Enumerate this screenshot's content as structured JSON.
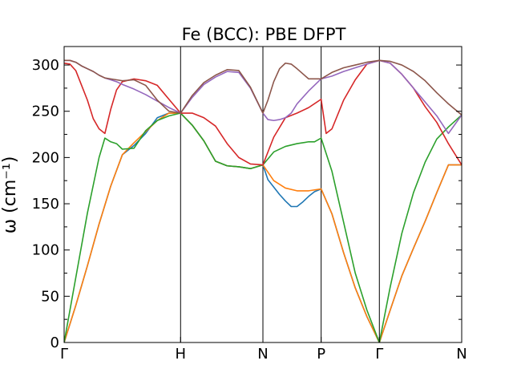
{
  "chart_data": {
    "type": "line",
    "title": "Fe (BCC): PBE DFPT",
    "ylabel": "ω (cm⁻¹)",
    "xlabel": "",
    "ylim": [
      0,
      320
    ],
    "yticks": [
      0,
      50,
      100,
      150,
      200,
      250,
      300
    ],
    "y_minor_ticks": [
      25,
      75,
      125,
      175,
      225,
      275
    ],
    "x_range": [
      0,
      3.414
    ],
    "high_symmetry_points": [
      {
        "label": "Γ",
        "x": 0
      },
      {
        "label": "H",
        "x": 1.0
      },
      {
        "label": "N",
        "x": 1.707
      },
      {
        "label": "P",
        "x": 2.207
      },
      {
        "label": "Γ",
        "x": 2.707
      },
      {
        "label": "N",
        "x": 3.414
      }
    ],
    "grid": false,
    "legend": "none",
    "series": [
      {
        "color": "#1f77b4",
        "x": [
          0,
          0.1,
          0.2,
          0.3,
          0.4,
          0.5,
          0.6,
          0.7,
          0.8,
          0.9,
          1.0,
          1.1,
          1.2,
          1.3,
          1.4,
          1.5,
          1.6,
          1.707,
          1.75,
          1.8,
          1.85,
          1.9,
          1.95,
          2.0,
          2.05,
          2.1,
          2.15,
          2.207,
          2.3,
          2.4,
          2.5,
          2.6,
          2.707,
          2.8,
          2.9,
          3.0,
          3.1,
          3.2,
          3.3,
          3.414
        ],
        "y": [
          0,
          40,
          83,
          128,
          169,
          203,
          213,
          226,
          243,
          248,
          248,
          235,
          218,
          196,
          191,
          190,
          188,
          192,
          176,
          168,
          160,
          153,
          147,
          147,
          152,
          158,
          163,
          166,
          139,
          97,
          59,
          28,
          0,
          35,
          72,
          102,
          131,
          162,
          192,
          192
        ]
      },
      {
        "color": "#ff7f0e",
        "x": [
          0,
          0.1,
          0.2,
          0.3,
          0.4,
          0.5,
          0.6,
          0.7,
          0.8,
          0.9,
          1.0,
          1.1,
          1.2,
          1.3,
          1.4,
          1.5,
          1.6,
          1.707,
          1.8,
          1.9,
          2.0,
          2.1,
          2.207,
          2.3,
          2.4,
          2.5,
          2.6,
          2.707,
          2.8,
          2.9,
          3.0,
          3.1,
          3.2,
          3.3,
          3.414
        ],
        "y": [
          0,
          40,
          83,
          128,
          169,
          203,
          216,
          228,
          240,
          248,
          248,
          235,
          218,
          196,
          191,
          190,
          188,
          192,
          175,
          167,
          164,
          164,
          166,
          139,
          97,
          59,
          28,
          0,
          35,
          72,
          102,
          131,
          162,
          192,
          192
        ]
      },
      {
        "color": "#2ca02c",
        "x": [
          0,
          0.1,
          0.2,
          0.3,
          0.35,
          0.4,
          0.45,
          0.5,
          0.6,
          0.7,
          0.8,
          0.9,
          1.0,
          1.1,
          1.2,
          1.3,
          1.4,
          1.5,
          1.6,
          1.707,
          1.8,
          1.9,
          2.0,
          2.1,
          2.15,
          2.207,
          2.3,
          2.4,
          2.5,
          2.6,
          2.707,
          2.8,
          2.9,
          3.0,
          3.1,
          3.2,
          3.3,
          3.414
        ],
        "y": [
          0,
          70,
          140,
          200,
          221,
          217,
          215,
          209,
          210,
          229,
          240,
          245,
          248,
          235,
          218,
          196,
          191,
          190,
          188,
          192,
          206,
          212,
          215,
          217,
          217,
          221,
          185,
          130,
          75,
          35,
          0,
          60,
          118,
          162,
          195,
          220,
          233,
          246
        ]
      },
      {
        "color": "#d62728",
        "x": [
          0,
          0.05,
          0.1,
          0.15,
          0.2,
          0.25,
          0.3,
          0.35,
          0.4,
          0.45,
          0.5,
          0.6,
          0.7,
          0.8,
          0.9,
          1.0,
          1.1,
          1.2,
          1.3,
          1.4,
          1.5,
          1.6,
          1.707,
          1.8,
          1.9,
          2.0,
          2.1,
          2.207,
          2.25,
          2.3,
          2.4,
          2.5,
          2.6,
          2.707,
          2.8,
          2.9,
          3.0,
          3.1,
          3.2,
          3.3,
          3.414
        ],
        "y": [
          302,
          301,
          294,
          278,
          262,
          242,
          231,
          226,
          252,
          273,
          282,
          285,
          283,
          278,
          263,
          248,
          248,
          243,
          234,
          215,
          200,
          193,
          192,
          222,
          243,
          248,
          254,
          263,
          226,
          231,
          262,
          284,
          301,
          305,
          302,
          290,
          275,
          255,
          238,
          215,
          192
        ]
      },
      {
        "color": "#9467bd",
        "x": [
          0,
          0.05,
          0.1,
          0.15,
          0.2,
          0.25,
          0.3,
          0.35,
          0.4,
          0.45,
          0.5,
          0.6,
          0.7,
          0.8,
          0.9,
          1.0,
          1.1,
          1.2,
          1.3,
          1.4,
          1.5,
          1.6,
          1.707,
          1.75,
          1.8,
          1.85,
          1.9,
          1.95,
          2.0,
          2.1,
          2.207,
          2.3,
          2.4,
          2.5,
          2.6,
          2.707,
          2.8,
          2.9,
          3.0,
          3.1,
          3.2,
          3.3,
          3.414
        ],
        "y": [
          305,
          305,
          303,
          299,
          296,
          293,
          289,
          286,
          284,
          282,
          279,
          274,
          268,
          261,
          254,
          248,
          265,
          279,
          287,
          293,
          292,
          275,
          248,
          241,
          240,
          241,
          243,
          248,
          258,
          272,
          285,
          288,
          293,
          297,
          301,
          305,
          302,
          290,
          275,
          260,
          245,
          226,
          246
        ]
      },
      {
        "color": "#8c564b",
        "x": [
          0,
          0.05,
          0.1,
          0.15,
          0.2,
          0.25,
          0.3,
          0.35,
          0.4,
          0.45,
          0.5,
          0.6,
          0.7,
          0.8,
          0.9,
          1.0,
          1.1,
          1.2,
          1.3,
          1.4,
          1.5,
          1.6,
          1.707,
          1.75,
          1.8,
          1.85,
          1.9,
          1.95,
          2.0,
          2.1,
          2.207,
          2.3,
          2.4,
          2.5,
          2.6,
          2.707,
          2.8,
          2.9,
          3.0,
          3.1,
          3.2,
          3.3,
          3.414
        ],
        "y": [
          305,
          305,
          303,
          299,
          296,
          293,
          289,
          286,
          285,
          284,
          283,
          284,
          278,
          262,
          250,
          248,
          267,
          281,
          289,
          295,
          294,
          276,
          248,
          262,
          282,
          296,
          302,
          301,
          296,
          285,
          285,
          292,
          297,
          300,
          303,
          305,
          304,
          300,
          293,
          283,
          270,
          258,
          246
        ]
      }
    ]
  }
}
